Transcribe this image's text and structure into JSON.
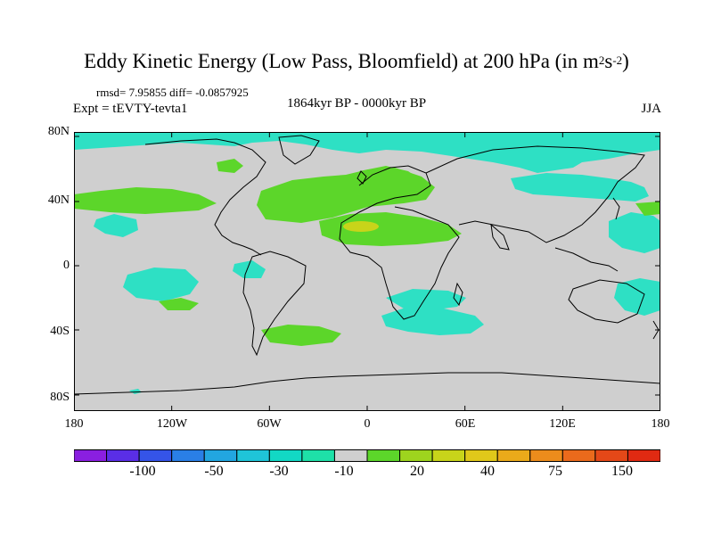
{
  "title": {
    "main": "Eddy Kinetic Energy (Low Pass, Bloomfield) at 200 hPa (in m",
    "exp1": "2",
    "mid": "s",
    "exp2": "-2",
    "end": ")"
  },
  "stats": "rmsd= 7.95855 diff= -0.0857925",
  "experiment": "Expt = tEVTY-tevta1",
  "period": "1864kyr BP - 0000kyr BP",
  "season": "JJA",
  "lat_ticks": [
    "80N",
    "40N",
    "0",
    "40S",
    "80S"
  ],
  "lon_ticks": [
    "180",
    "120W",
    "60W",
    "0",
    "60E",
    "120E",
    "180"
  ],
  "colorbar": {
    "labels": [
      "-100",
      "-50",
      "-30",
      "-10",
      "20",
      "40",
      "75",
      "150"
    ],
    "colors": [
      "#8a1fe0",
      "#5a2ee6",
      "#3554e8",
      "#2a7fe6",
      "#22a6e0",
      "#1fc4d8",
      "#12d8c4",
      "#1ee0a8",
      "#cfcfcf",
      "#5cd62a",
      "#9ed41e",
      "#c8d41a",
      "#e0c81a",
      "#eaaa1a",
      "#ec8c1c",
      "#ea6a1c",
      "#e44818",
      "#e02a12"
    ]
  },
  "colors": {
    "land_background": "#cfcfcf",
    "cyan": "#2ee0c4",
    "green": "#5cd62a",
    "yellow_green": "#c8d41a"
  }
}
